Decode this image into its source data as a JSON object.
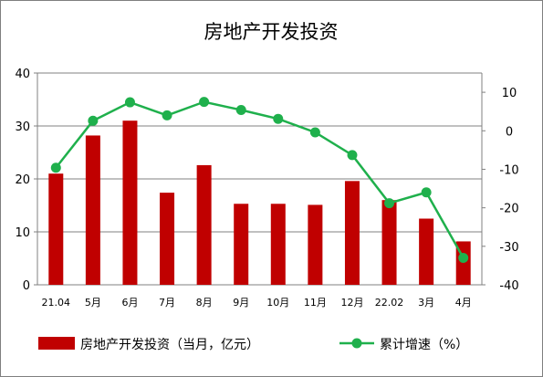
{
  "chart_data": {
    "type": "bar",
    "title": "房地产开发投资",
    "categories": [
      "21.04",
      "5月",
      "6月",
      "7月",
      "8月",
      "9月",
      "10月",
      "11月",
      "12月",
      "22.02",
      "3月",
      "4月"
    ],
    "series": [
      {
        "name": "房地产开发投资（当月，亿元）",
        "type": "bar",
        "axis": "left",
        "color": "#c00000",
        "values": [
          21,
          28.2,
          31,
          17.4,
          22.6,
          15.3,
          15.3,
          15.1,
          19.6,
          16,
          12.5,
          8.2
        ]
      },
      {
        "name": "累计增速（%）",
        "type": "line",
        "axis": "right",
        "color": "#1fb04c",
        "values": [
          -9.6,
          2.6,
          7.4,
          4,
          7.5,
          5.4,
          3.1,
          -0.4,
          -6.3,
          -18.8,
          -16,
          -33
        ]
      }
    ],
    "y_left": {
      "min": 0,
      "max": 40,
      "ticks": [
        0,
        10,
        20,
        30,
        40
      ]
    },
    "y_right": {
      "min": -40,
      "max": 15,
      "ticks": [
        -40,
        -30,
        -20,
        -10,
        0,
        10
      ]
    },
    "grid": true,
    "legend_position": "bottom"
  }
}
